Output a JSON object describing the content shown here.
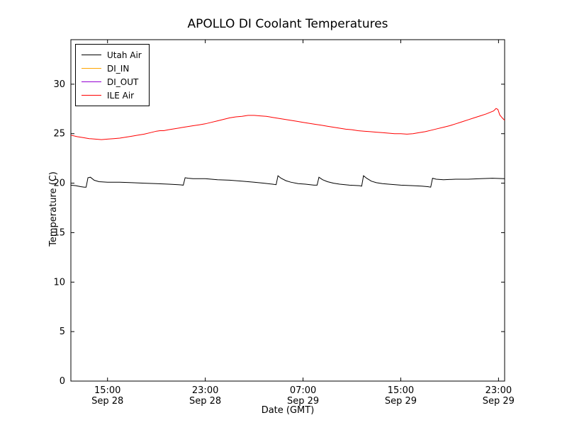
{
  "figure": {
    "background": "#ffffff",
    "frame_color": "#000000"
  },
  "chart_data": {
    "type": "line",
    "title": "APOLLO DI Coolant Temperatures",
    "xlabel": "Date (GMT)",
    "ylabel": "Temperature (C)",
    "x_unit": "hours since Sep 28 00:00 GMT",
    "xlim": [
      12,
      47.5
    ],
    "ylim": [
      0,
      34.5
    ],
    "grid": false,
    "legend_position": "upper left",
    "yticks": [
      0,
      5,
      10,
      15,
      20,
      25,
      30
    ],
    "xticks": [
      {
        "value": 15,
        "time": "15:00",
        "date": "Sep 28"
      },
      {
        "value": 23,
        "time": "23:00",
        "date": "Sep 28"
      },
      {
        "value": 31,
        "time": "07:00",
        "date": "Sep 29"
      },
      {
        "value": 39,
        "time": "15:00",
        "date": "Sep 29"
      },
      {
        "value": 47,
        "time": "23:00",
        "date": "Sep 29"
      }
    ],
    "series": [
      {
        "name": "Utah Air",
        "color": "#000000",
        "points": [
          [
            12.0,
            19.8
          ],
          [
            12.4,
            19.75
          ],
          [
            12.8,
            19.65
          ],
          [
            13.1,
            19.6
          ],
          [
            13.25,
            19.6
          ],
          [
            13.4,
            20.55
          ],
          [
            13.6,
            20.6
          ],
          [
            13.9,
            20.3
          ],
          [
            14.3,
            20.15
          ],
          [
            15,
            20.1
          ],
          [
            16,
            20.1
          ],
          [
            17,
            20.05
          ],
          [
            18,
            20.0
          ],
          [
            19,
            19.95
          ],
          [
            20,
            19.9
          ],
          [
            20.8,
            19.85
          ],
          [
            21.2,
            19.8
          ],
          [
            21.35,
            20.55
          ],
          [
            21.6,
            20.5
          ],
          [
            22,
            20.45
          ],
          [
            23,
            20.45
          ],
          [
            24,
            20.35
          ],
          [
            25,
            20.3
          ],
          [
            26,
            20.2
          ],
          [
            27,
            20.1
          ],
          [
            27.8,
            20.0
          ],
          [
            28.5,
            19.9
          ],
          [
            28.8,
            19.85
          ],
          [
            28.95,
            20.75
          ],
          [
            29.2,
            20.5
          ],
          [
            29.6,
            20.25
          ],
          [
            30,
            20.1
          ],
          [
            30.6,
            19.95
          ],
          [
            31.2,
            19.9
          ],
          [
            31.9,
            19.8
          ],
          [
            32.15,
            19.8
          ],
          [
            32.3,
            20.6
          ],
          [
            32.6,
            20.35
          ],
          [
            33,
            20.15
          ],
          [
            33.5,
            20.0
          ],
          [
            34,
            19.9
          ],
          [
            34.8,
            19.8
          ],
          [
            35.6,
            19.75
          ],
          [
            35.8,
            19.7
          ],
          [
            35.95,
            20.75
          ],
          [
            36.2,
            20.5
          ],
          [
            36.6,
            20.2
          ],
          [
            37,
            20.05
          ],
          [
            37.5,
            19.95
          ],
          [
            38,
            19.9
          ],
          [
            39,
            19.8
          ],
          [
            40,
            19.75
          ],
          [
            40.7,
            19.7
          ],
          [
            41.2,
            19.65
          ],
          [
            41.45,
            19.6
          ],
          [
            41.6,
            20.5
          ],
          [
            41.9,
            20.4
          ],
          [
            42.5,
            20.35
          ],
          [
            43.5,
            20.4
          ],
          [
            44.5,
            20.4
          ],
          [
            45.5,
            20.45
          ],
          [
            46.5,
            20.5
          ],
          [
            47.5,
            20.45
          ]
        ]
      },
      {
        "name": "DI_IN",
        "color": "#ffa500",
        "points": []
      },
      {
        "name": "DI_OUT",
        "color": "#9400d3",
        "points": []
      },
      {
        "name": "ILE Air",
        "color": "#ff0000",
        "points": [
          [
            12.0,
            24.85
          ],
          [
            12.5,
            24.7
          ],
          [
            13,
            24.6
          ],
          [
            13.5,
            24.5
          ],
          [
            14,
            24.45
          ],
          [
            14.5,
            24.4
          ],
          [
            15,
            24.45
          ],
          [
            15.5,
            24.5
          ],
          [
            16,
            24.55
          ],
          [
            16.5,
            24.65
          ],
          [
            17,
            24.75
          ],
          [
            17.5,
            24.85
          ],
          [
            18,
            24.95
          ],
          [
            18.5,
            25.1
          ],
          [
            19,
            25.25
          ],
          [
            19.3,
            25.3
          ],
          [
            19.6,
            25.3
          ],
          [
            20,
            25.4
          ],
          [
            20.5,
            25.5
          ],
          [
            21,
            25.6
          ],
          [
            21.5,
            25.7
          ],
          [
            22,
            25.8
          ],
          [
            22.5,
            25.9
          ],
          [
            23,
            26.0
          ],
          [
            23.5,
            26.15
          ],
          [
            24,
            26.3
          ],
          [
            24.5,
            26.45
          ],
          [
            25,
            26.6
          ],
          [
            25.5,
            26.7
          ],
          [
            26,
            26.75
          ],
          [
            26.5,
            26.85
          ],
          [
            27,
            26.85
          ],
          [
            27.5,
            26.8
          ],
          [
            28,
            26.75
          ],
          [
            28.5,
            26.65
          ],
          [
            29,
            26.55
          ],
          [
            29.5,
            26.45
          ],
          [
            30,
            26.35
          ],
          [
            30.5,
            26.25
          ],
          [
            31,
            26.15
          ],
          [
            31.5,
            26.05
          ],
          [
            32,
            25.95
          ],
          [
            32.5,
            25.85
          ],
          [
            33,
            25.75
          ],
          [
            33.5,
            25.65
          ],
          [
            34,
            25.55
          ],
          [
            34.5,
            25.45
          ],
          [
            35,
            25.4
          ],
          [
            35.5,
            25.3
          ],
          [
            36,
            25.25
          ],
          [
            36.5,
            25.2
          ],
          [
            37,
            25.15
          ],
          [
            37.5,
            25.1
          ],
          [
            38,
            25.05
          ],
          [
            38.5,
            25.0
          ],
          [
            39,
            25.0
          ],
          [
            39.5,
            24.95
          ],
          [
            40,
            25.0
          ],
          [
            40.5,
            25.1
          ],
          [
            41,
            25.2
          ],
          [
            41.5,
            25.35
          ],
          [
            42,
            25.5
          ],
          [
            42.5,
            25.65
          ],
          [
            43,
            25.8
          ],
          [
            43.5,
            26.0
          ],
          [
            44,
            26.2
          ],
          [
            44.5,
            26.4
          ],
          [
            45,
            26.6
          ],
          [
            45.5,
            26.8
          ],
          [
            46,
            27.0
          ],
          [
            46.3,
            27.15
          ],
          [
            46.6,
            27.3
          ],
          [
            46.8,
            27.55
          ],
          [
            46.95,
            27.45
          ],
          [
            47.1,
            26.9
          ],
          [
            47.3,
            26.6
          ],
          [
            47.5,
            26.35
          ]
        ]
      }
    ]
  }
}
